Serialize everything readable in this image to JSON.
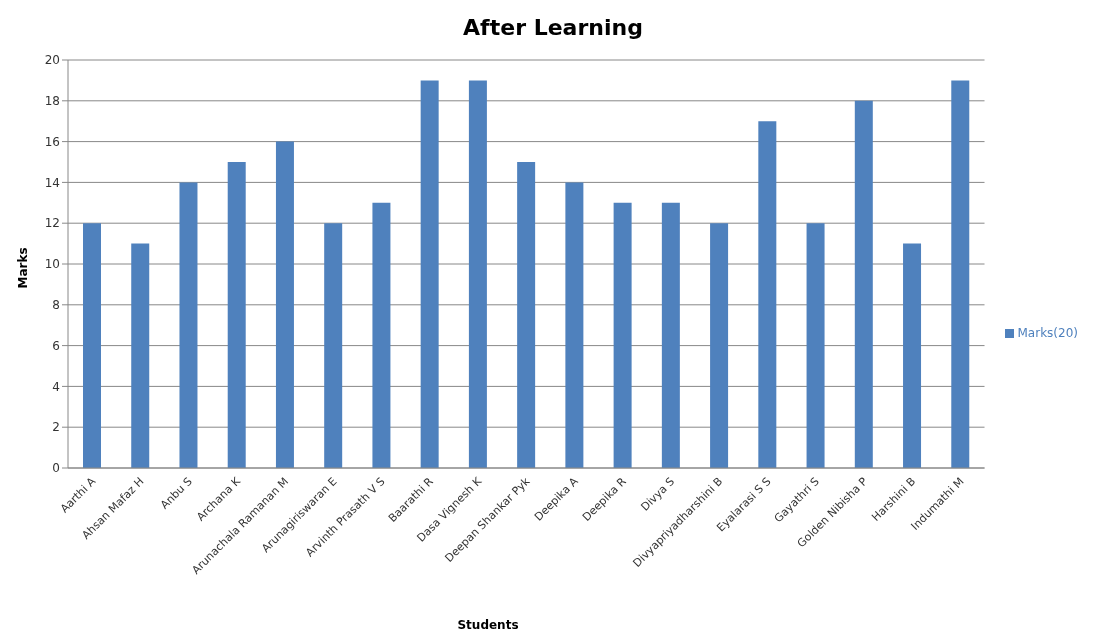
{
  "chart_data": {
    "type": "bar",
    "title": "After Learning",
    "xlabel": "Students",
    "ylabel": "Marks",
    "categories": [
      "Aarthi A",
      "Ahsan Mafaz H",
      "Anbu S",
      "Archana K",
      "Arunachala Ramanan M",
      "Arunagiriswaran E",
      "Arvinth Prasath V S",
      "Baarathi R",
      "Dasa Vignesh K",
      "Deepan Shankar Pyk",
      "Deepika A",
      "Deepika R",
      "Divya S",
      "Divyapriyadharshini B",
      "Eyalarasi S S",
      "Gayathri S",
      "Golden Nibisha P",
      "Harshini B",
      "Indumathi M"
    ],
    "series": [
      {
        "name": "Marks(20)",
        "color": "#4f81bd",
        "values": [
          12,
          11,
          14,
          15,
          16,
          12,
          13,
          19,
          19,
          15,
          14,
          13,
          13,
          12,
          17,
          12,
          18,
          11,
          19
        ]
      }
    ],
    "ylim": [
      0,
      20
    ],
    "yticks": [
      0,
      2,
      4,
      6,
      8,
      10,
      12,
      14,
      16,
      18,
      20
    ],
    "grid": "y",
    "legend": "right"
  }
}
